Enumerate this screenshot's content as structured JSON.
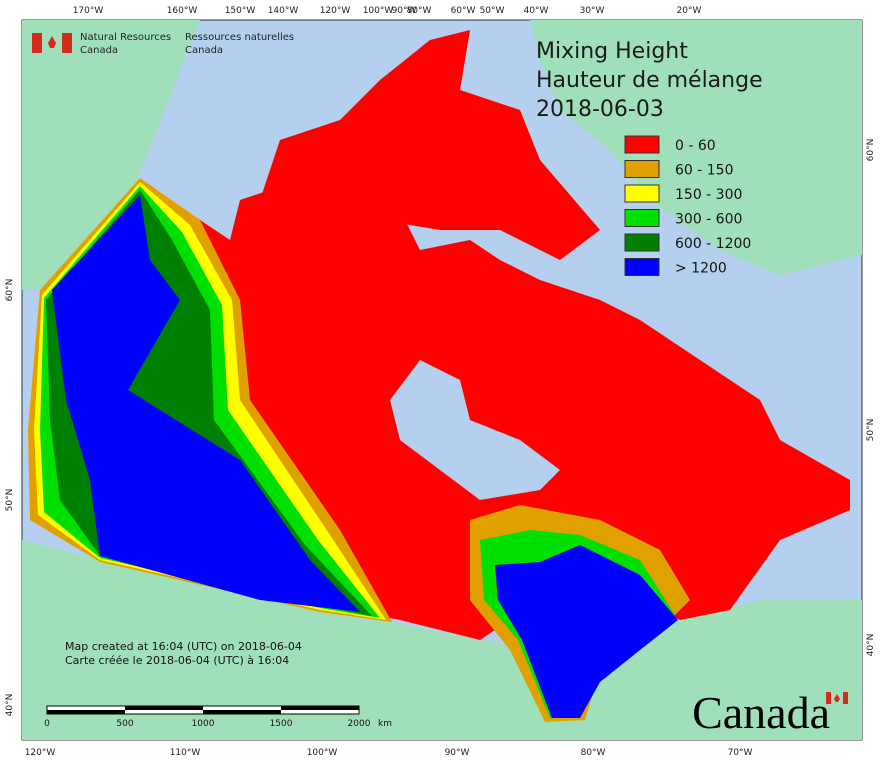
{
  "header": {
    "agency_en": [
      "Natural Resources",
      "Canada"
    ],
    "agency_fr": [
      "Ressources naturelles",
      "Canada"
    ]
  },
  "title": [
    "Mixing Height",
    "Hauteur de mélange",
    "2018-06-03"
  ],
  "legend": [
    {
      "label": "0 - 60",
      "color": "#ff0000"
    },
    {
      "label": "60 - 150",
      "color": "#e0a000"
    },
    {
      "label": "150 - 300",
      "color": "#ffff00"
    },
    {
      "label": "300 - 600",
      "color": "#00e000"
    },
    {
      "label": "600 - 1200",
      "color": "#008000"
    },
    {
      "label": "> 1200",
      "color": "#0000ff"
    }
  ],
  "graticule": {
    "top": [
      "170°W",
      "160°W",
      "150°W",
      "140°W",
      "120°W",
      "100°W",
      "90°W",
      "80°W",
      "60°W",
      "50°W",
      "40°W",
      "30°W",
      "20°W"
    ],
    "bottom": [
      "120°W",
      "110°W",
      "100°W",
      "90°W",
      "80°W",
      "70°W"
    ],
    "left": [
      "60°N",
      "50°N",
      "40°N"
    ],
    "right": [
      "60°N",
      "50°N",
      "40°N"
    ]
  },
  "notes": [
    "Map created at 16:04 (UTC) on 2018-06-04",
    "Carte créée le 2018-06-04 (UTC) à 16:04"
  ],
  "scale": {
    "labels": [
      "0",
      "500",
      "1000",
      "1500",
      "2000"
    ],
    "unit": "km"
  },
  "wordmark": "Canada"
}
